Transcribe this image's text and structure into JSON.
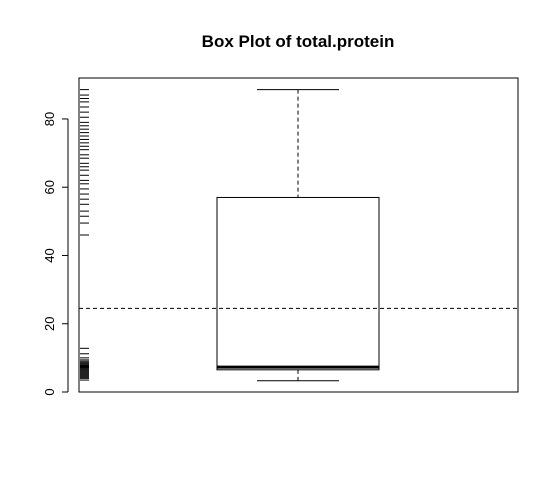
{
  "chart_data": {
    "type": "box",
    "title": "Box Plot of total.protein",
    "xlabel": "",
    "ylabel": "",
    "ylim": [
      0,
      92
    ],
    "y_ticks": [
      0,
      20,
      40,
      60,
      80
    ],
    "y_tick_labels": [
      "0",
      "20",
      "40",
      "60",
      "80"
    ],
    "box": {
      "min": 3.3,
      "q1": 6.5,
      "median": 7.3,
      "q3": 57.0,
      "max": 88.6
    },
    "reference_line": {
      "y": 24.5,
      "style": "dashed"
    },
    "rug_values": [
      3.5,
      4.0,
      4.3,
      4.6,
      4.9,
      5.2,
      5.5,
      5.8,
      6.1,
      6.4,
      6.7,
      7.0,
      7.2,
      7.4,
      7.6,
      7.8,
      8.0,
      8.3,
      8.6,
      9.0,
      9.4,
      10.0,
      11.2,
      12.8,
      46.0,
      49.5,
      51.5,
      53.0,
      55.0,
      56.5,
      58.0,
      59.5,
      61.0,
      62.0,
      63.5,
      65.0,
      66.0,
      67.0,
      68.5,
      69.5,
      71.0,
      72.0,
      73.0,
      74.0,
      75.0,
      76.0,
      77.0,
      78.0,
      79.0,
      80.5,
      82.0,
      83.5,
      85.0,
      86.0,
      87.0,
      88.6
    ],
    "grid": false,
    "legend": "none"
  }
}
